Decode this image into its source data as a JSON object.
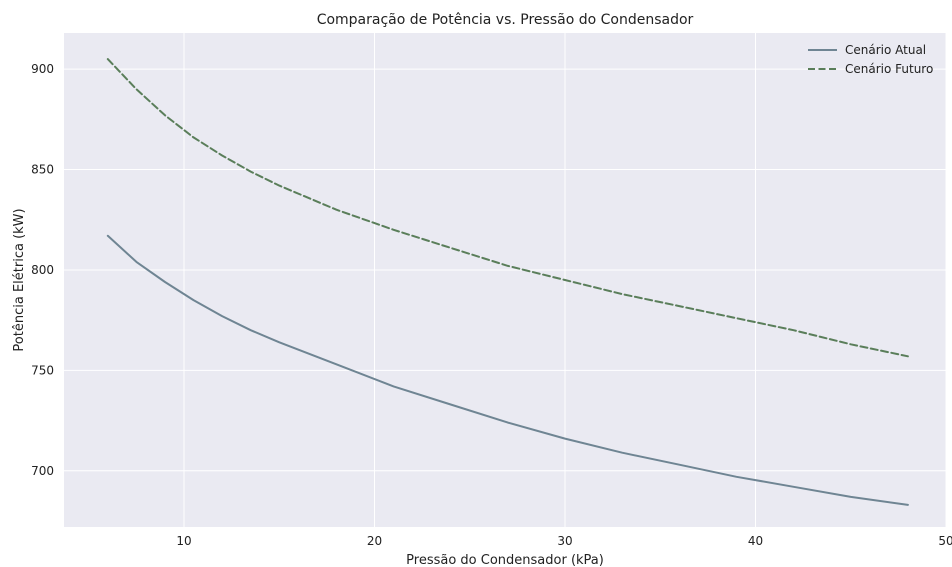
{
  "chart_data": {
    "type": "line",
    "title": "Comparação de Potência vs. Pressão do Condensador",
    "xlabel": "Pressão do Condensador (kPa)",
    "ylabel": "Potência Elétrica (kW)",
    "xlim": [
      3.7,
      50.0
    ],
    "ylim": [
      672,
      918
    ],
    "xticks": [
      10,
      20,
      30,
      40,
      50
    ],
    "yticks": [
      700,
      750,
      800,
      850,
      900
    ],
    "grid": true,
    "legend_position": "top-right",
    "colors": {
      "background": "#eaeaf2",
      "grid": "#ffffff",
      "actual": "#6f8593",
      "future": "#5a7e5a"
    },
    "x": [
      6,
      7.5,
      9,
      10.5,
      12,
      13.5,
      15,
      18,
      21,
      24,
      27,
      30,
      33,
      36,
      39,
      42,
      45,
      48
    ],
    "series": [
      {
        "name": "Cenário Atual",
        "style": "solid",
        "values": [
          817,
          804,
          794,
          785,
          777,
          770,
          764,
          753,
          742,
          733,
          724,
          716,
          709,
          703,
          697,
          692,
          687,
          683
        ]
      },
      {
        "name": "Cenário Futuro",
        "style": "dashed",
        "values": [
          905,
          890,
          877,
          866,
          857,
          849,
          842,
          830,
          820,
          811,
          802,
          795,
          788,
          782,
          776,
          770,
          763,
          757
        ]
      }
    ]
  }
}
